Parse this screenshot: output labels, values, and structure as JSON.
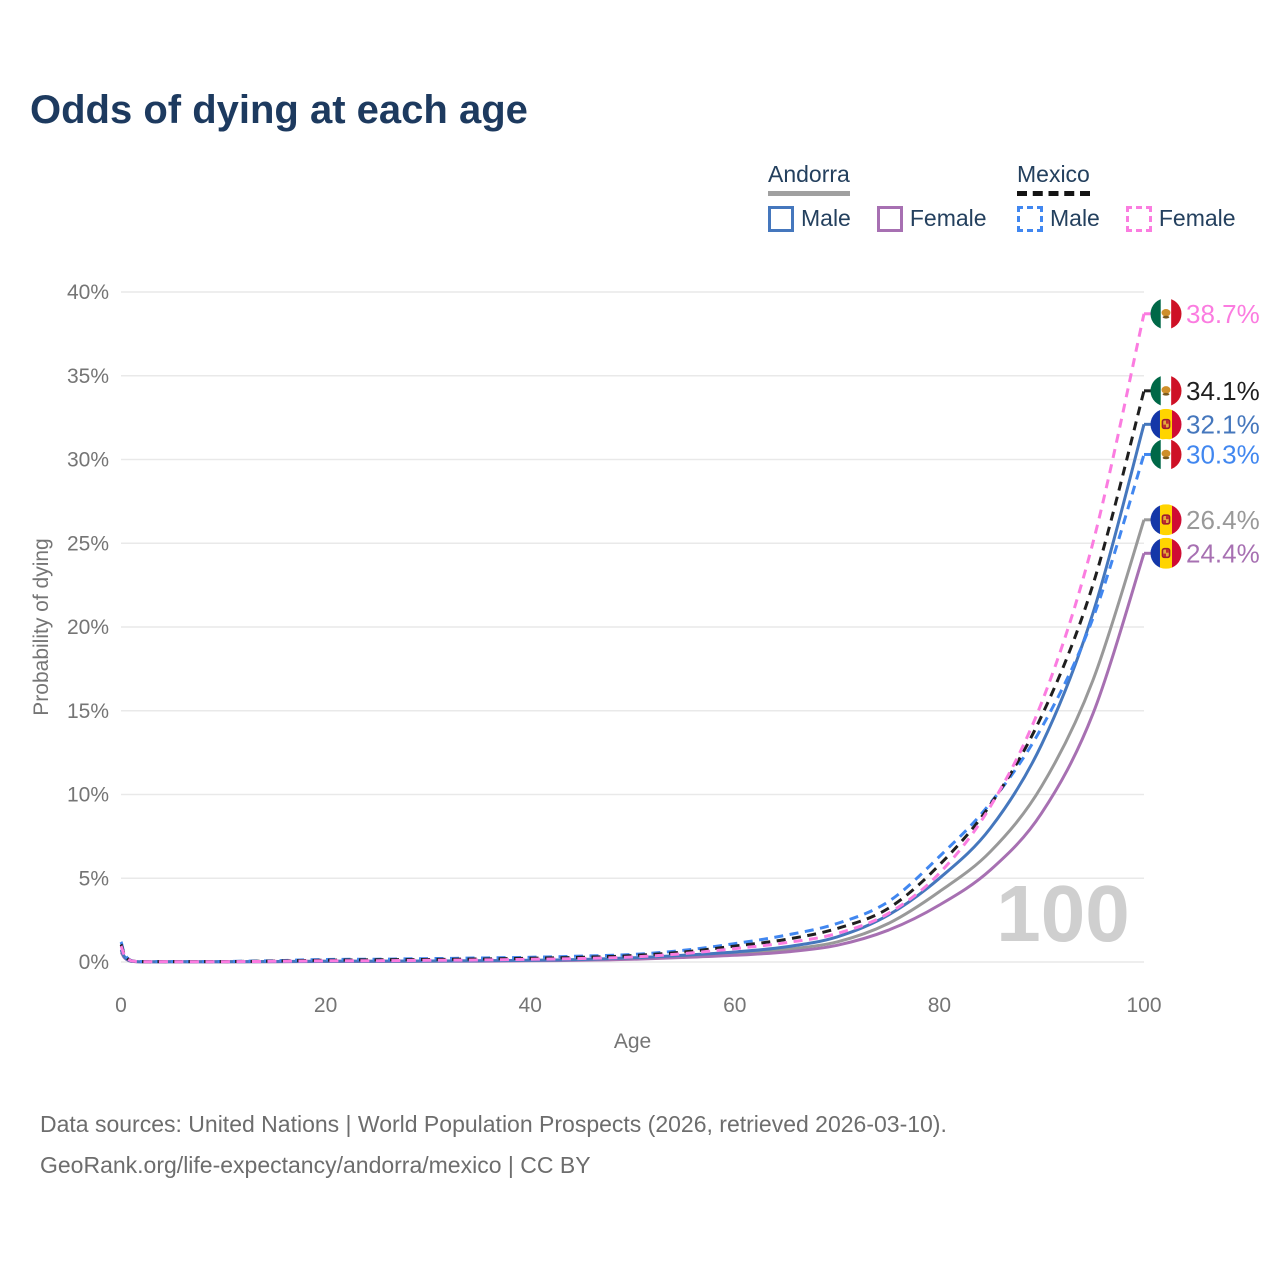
{
  "title": "Odds of dying at each age",
  "legend": {
    "groups": [
      {
        "name": "Andorra",
        "dash": false,
        "underline_color": "#a0a0a0",
        "items": [
          {
            "label": "Male",
            "color": "#4577bd",
            "dash": false
          },
          {
            "label": "Female",
            "color": "#a770b2",
            "dash": false
          }
        ]
      },
      {
        "name": "Mexico",
        "dash": true,
        "underline_color": "#141414",
        "items": [
          {
            "label": "Male",
            "color": "#4187f0",
            "dash": true
          },
          {
            "label": "Female",
            "color": "#fb7ce0",
            "dash": true
          }
        ]
      }
    ]
  },
  "chart_data": {
    "type": "line",
    "title": "Odds of dying at each age",
    "xlabel": "Age",
    "ylabel": "Probability of dying",
    "xlim": [
      0,
      100
    ],
    "ylim": [
      0,
      40
    ],
    "grid": "horizontal",
    "age_indicator": "100",
    "xticks": [
      {
        "value": 0,
        "label": "0"
      },
      {
        "value": 20,
        "label": "20"
      },
      {
        "value": 40,
        "label": "40"
      },
      {
        "value": 60,
        "label": "60"
      },
      {
        "value": 80,
        "label": "80"
      },
      {
        "value": 100,
        "label": "100"
      }
    ],
    "yticks": [
      {
        "value": 0,
        "label": "0%"
      },
      {
        "value": 5,
        "label": "5%"
      },
      {
        "value": 10,
        "label": "10%"
      },
      {
        "value": 15,
        "label": "15%"
      },
      {
        "value": 20,
        "label": "20%"
      },
      {
        "value": 25,
        "label": "25%"
      },
      {
        "value": 30,
        "label": "30%"
      },
      {
        "value": 35,
        "label": "35%"
      },
      {
        "value": 40,
        "label": "40%"
      }
    ],
    "x": [
      0,
      1,
      5,
      10,
      15,
      20,
      25,
      30,
      35,
      40,
      45,
      50,
      55,
      60,
      65,
      70,
      75,
      80,
      85,
      90,
      95,
      100
    ],
    "series": [
      {
        "name": "Andorra",
        "flag": "andorra",
        "color": "#999999",
        "dash": false,
        "end_label": "26.4%",
        "values": [
          0.7,
          0.04,
          0.015,
          0.015,
          0.025,
          0.04,
          0.04,
          0.05,
          0.07,
          0.09,
          0.13,
          0.2,
          0.33,
          0.5,
          0.75,
          1.2,
          2.3,
          4.2,
          6.6,
          10.5,
          16.8,
          26.4
        ]
      },
      {
        "name": "Andorra Female",
        "flag": "andorra",
        "color": "#a770b2",
        "dash": false,
        "end_label": "24.4%",
        "values": [
          0.6,
          0.04,
          0.01,
          0.01,
          0.02,
          0.03,
          0.03,
          0.04,
          0.05,
          0.07,
          0.1,
          0.16,
          0.27,
          0.4,
          0.6,
          1.0,
          1.9,
          3.4,
          5.5,
          8.9,
          14.8,
          24.4
        ]
      },
      {
        "name": "Andorra Male",
        "flag": "andorra",
        "color": "#4577bd",
        "dash": false,
        "end_label": "32.1%",
        "values": [
          0.75,
          0.05,
          0.02,
          0.02,
          0.03,
          0.05,
          0.05,
          0.06,
          0.08,
          0.1,
          0.15,
          0.25,
          0.4,
          0.6,
          0.9,
          1.5,
          2.8,
          5.0,
          8.0,
          13.0,
          20.8,
          32.1
        ]
      },
      {
        "name": "Mexico Male",
        "flag": "mexico",
        "color": "#4187f0",
        "dash": true,
        "end_label": "30.3%",
        "values": [
          1.2,
          0.09,
          0.03,
          0.03,
          0.08,
          0.15,
          0.17,
          0.2,
          0.24,
          0.28,
          0.35,
          0.45,
          0.7,
          1.1,
          1.6,
          2.3,
          3.6,
          6.3,
          9.5,
          14.0,
          20.5,
          30.3
        ]
      },
      {
        "name": "Mexico",
        "flag": "mexico",
        "color": "#1f1f1f",
        "dash": true,
        "end_label": "34.1%",
        "values": [
          1.05,
          0.08,
          0.025,
          0.025,
          0.06,
          0.11,
          0.13,
          0.15,
          0.18,
          0.22,
          0.28,
          0.38,
          0.6,
          0.95,
          1.35,
          2.0,
          3.2,
          5.8,
          9.4,
          14.7,
          22.5,
          34.1
        ]
      },
      {
        "name": "Mexico Female",
        "flag": "mexico",
        "color": "#fb7ce0",
        "dash": true,
        "end_label": "38.7%",
        "values": [
          0.95,
          0.07,
          0.02,
          0.02,
          0.04,
          0.07,
          0.08,
          0.1,
          0.12,
          0.16,
          0.21,
          0.3,
          0.5,
          0.8,
          1.15,
          1.7,
          2.9,
          5.3,
          9.3,
          15.5,
          25.0,
          38.7
        ]
      }
    ]
  },
  "footer": {
    "line1": "Data sources: United Nations | World Population Prospects (2026, retrieved 2026-03-10).",
    "line2": "GeoRank.org/life-expectancy/andorra/mexico | CC BY"
  }
}
